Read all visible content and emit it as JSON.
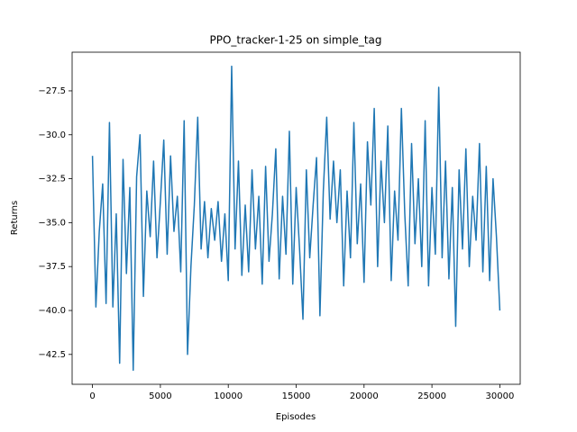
{
  "chart_data": {
    "type": "line",
    "title": "PPO_tracker-1-25 on simple_tag",
    "x_label": "Episodes",
    "y_label": "Returns",
    "color": "#1f77b4",
    "xlim": [
      -1500,
      31500
    ],
    "ylim": [
      -44.2,
      -25.3
    ],
    "xticks": [
      0,
      5000,
      10000,
      15000,
      20000,
      25000,
      30000
    ],
    "yticks": [
      {
        "value": -42.5,
        "label": "−42.5"
      },
      {
        "value": -40,
        "label": "−40.0"
      },
      {
        "value": -37.5,
        "label": "−37.5"
      },
      {
        "value": -35,
        "label": "−35.0"
      },
      {
        "value": -32.5,
        "label": "−32.5"
      },
      {
        "value": -30,
        "label": "−30.0"
      },
      {
        "value": -27.5,
        "label": "−27.5"
      }
    ],
    "x": [
      0,
      250,
      500,
      750,
      1000,
      1250,
      1500,
      1750,
      2000,
      2250,
      2500,
      2750,
      3000,
      3250,
      3500,
      3750,
      4000,
      4250,
      4500,
      4750,
      5000,
      5250,
      5500,
      5750,
      6000,
      6250,
      6500,
      6750,
      7000,
      7250,
      7500,
      7750,
      8000,
      8250,
      8500,
      8750,
      9000,
      9250,
      9500,
      9750,
      10000,
      10250,
      10500,
      10750,
      11000,
      11250,
      11500,
      11750,
      12000,
      12250,
      12500,
      12750,
      13000,
      13250,
      13500,
      13750,
      14000,
      14250,
      14500,
      14750,
      15000,
      15250,
      15500,
      15750,
      16000,
      16250,
      16500,
      16750,
      17000,
      17250,
      17500,
      17750,
      18000,
      18250,
      18500,
      18750,
      19000,
      19250,
      19500,
      19750,
      20000,
      20250,
      20500,
      20750,
      21000,
      21250,
      21500,
      21750,
      22000,
      22250,
      22500,
      22750,
      23000,
      23250,
      23500,
      23750,
      24000,
      24250,
      24500,
      24750,
      25000,
      25250,
      25500,
      25750,
      26000,
      26250,
      26500,
      26750,
      27000,
      27250,
      27500,
      27750,
      28000,
      28250,
      28500,
      28750,
      29000,
      29250,
      29500,
      29750,
      30000
    ],
    "values": [
      -31.2,
      -39.8,
      -35.5,
      -32.8,
      -39.6,
      -29.3,
      -39.8,
      -34.5,
      -43.0,
      -31.4,
      -37.9,
      -33.0,
      -43.4,
      -32.4,
      -30.0,
      -39.2,
      -33.2,
      -35.8,
      -31.5,
      -37.0,
      -33.8,
      -30.3,
      -36.8,
      -31.2,
      -35.5,
      -33.5,
      -37.8,
      -29.2,
      -42.5,
      -37.5,
      -34.0,
      -29.0,
      -36.5,
      -33.8,
      -37.0,
      -34.2,
      -36.0,
      -33.8,
      -37.2,
      -34.5,
      -38.3,
      -26.1,
      -36.5,
      -31.5,
      -38.0,
      -34.0,
      -37.8,
      -32.0,
      -36.5,
      -33.5,
      -38.5,
      -31.8,
      -37.2,
      -34.5,
      -30.8,
      -38.2,
      -33.5,
      -36.8,
      -29.8,
      -38.5,
      -33.0,
      -36.5,
      -40.5,
      -32.0,
      -37.0,
      -34.0,
      -31.3,
      -40.3,
      -33.2,
      -29.0,
      -34.8,
      -31.5,
      -35.0,
      -32.0,
      -38.6,
      -33.2,
      -37.0,
      -29.3,
      -36.2,
      -32.8,
      -38.4,
      -30.4,
      -34.0,
      -28.5,
      -37.5,
      -31.5,
      -35.0,
      -29.5,
      -38.3,
      -33.2,
      -36.0,
      -28.5,
      -34.5,
      -38.6,
      -30.5,
      -36.2,
      -32.5,
      -37.5,
      -29.2,
      -38.6,
      -33.0,
      -36.8,
      -27.3,
      -37.0,
      -31.5,
      -38.2,
      -33.0,
      -40.9,
      -32.0,
      -36.5,
      -30.8,
      -37.5,
      -33.5,
      -36.0,
      -30.5,
      -37.8,
      -31.8,
      -38.3,
      -32.5,
      -35.8,
      -40.0
    ]
  }
}
